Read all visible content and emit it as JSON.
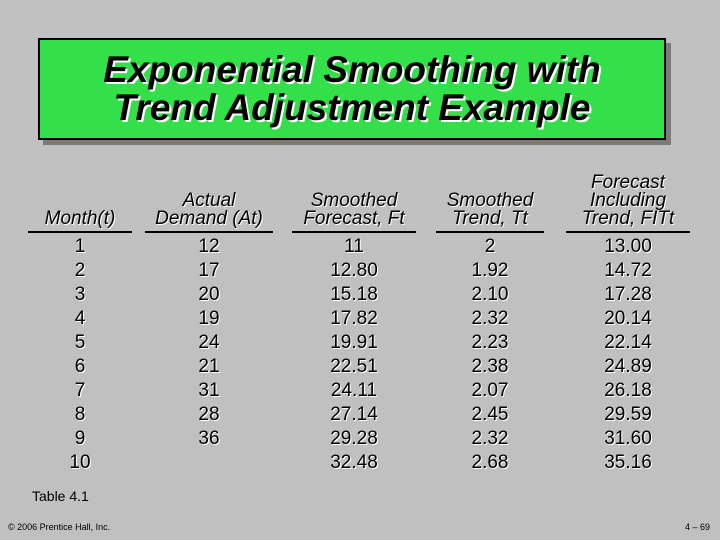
{
  "title": {
    "line1": "Exponential Smoothing with",
    "line2": "Trend Adjustment Example"
  },
  "table": {
    "headers": [
      [
        "Month(t)"
      ],
      [
        "Actual",
        "Demand (At)"
      ],
      [
        "Smoothed",
        "Forecast, Ft"
      ],
      [
        "Smoothed",
        "Trend, Tt"
      ],
      [
        "Forecast",
        "Including",
        "Trend, FITt"
      ]
    ],
    "columns": [
      [
        "1",
        "2",
        "3",
        "4",
        "5",
        "6",
        "7",
        "8",
        "9",
        "10"
      ],
      [
        "12",
        "17",
        "20",
        "19",
        "24",
        "21",
        "31",
        "28",
        "36"
      ],
      [
        "11",
        "12.80",
        "15.18",
        "17.82",
        "19.91",
        "22.51",
        "24.11",
        "27.14",
        "29.28",
        "32.48"
      ],
      [
        "2",
        "1.92",
        "2.10",
        "2.32",
        "2.23",
        "2.38",
        "2.07",
        "2.45",
        "2.32",
        "2.68"
      ],
      [
        "13.00",
        "14.72",
        "17.28",
        "20.14",
        "22.14",
        "24.89",
        "26.18",
        "29.59",
        "31.60",
        "35.16"
      ]
    ]
  },
  "caption": "Table 4.1",
  "footer": {
    "copyright": "© 2006 Prentice Hall, Inc.",
    "page": "4 – 69"
  }
}
